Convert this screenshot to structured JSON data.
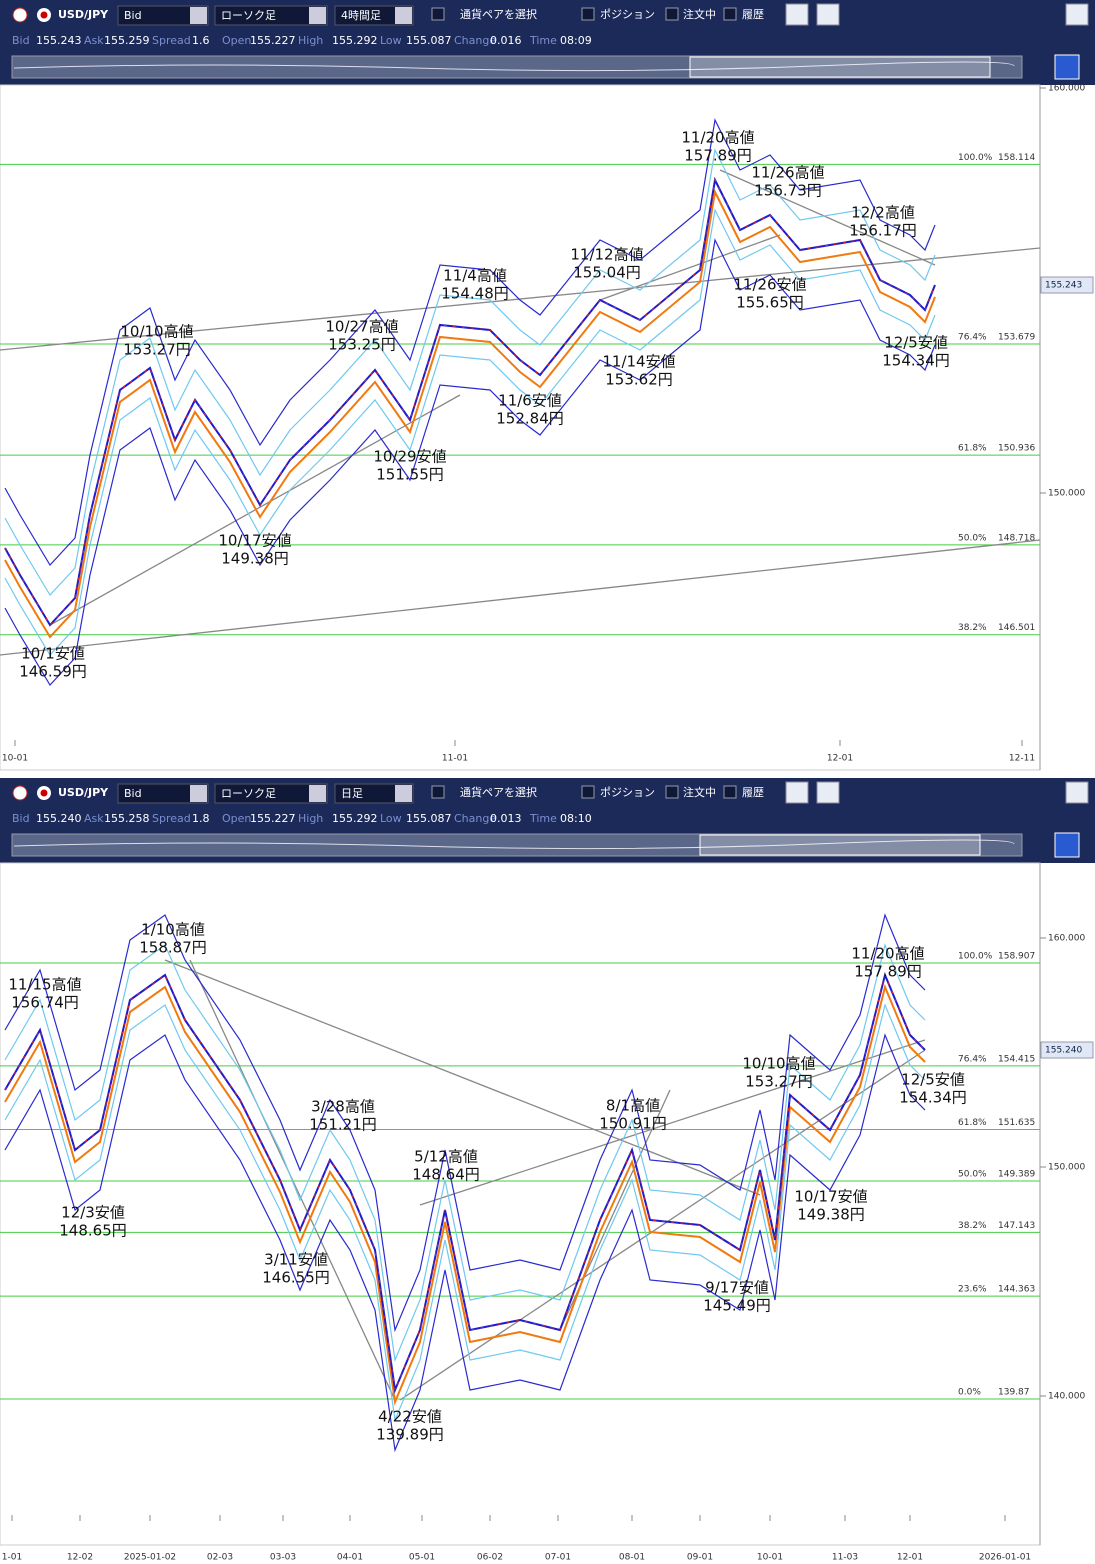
{
  "panels": [
    {
      "toolbar": {
        "pair": "USD/JPY",
        "price_type": "Bid",
        "chart_type": "ローソク足",
        "timeframe": "4時間足",
        "select_pair": "通貨ペアを選択",
        "position": "ポジション",
        "orders": "注文中",
        "history": "履歴"
      },
      "quote": [
        [
          "Bid",
          "155.243"
        ],
        [
          "Ask",
          "155.259"
        ],
        [
          "Spread",
          "1.6"
        ],
        [
          "Open",
          "155.227"
        ],
        [
          "High",
          "155.292"
        ],
        [
          "Low",
          "155.087"
        ],
        [
          "Change",
          "0.016"
        ],
        [
          "Time",
          "08:09"
        ]
      ],
      "current_price": "155.243",
      "yticks": [
        {
          "value": 160,
          "label": "160.000"
        },
        {
          "value": 150,
          "label": "150.000"
        }
      ],
      "xticks": [
        "10-01",
        "11-01",
        "12-01",
        "12-11"
      ],
      "fib": [
        {
          "label": "100.0%",
          "value": 158.114
        },
        {
          "label": "76.4%",
          "value": 153.679
        },
        {
          "label": "61.8%",
          "value": 150.936
        },
        {
          "label": "50.0%",
          "value": 148.718
        },
        {
          "label": "38.2%",
          "value": 146.501
        }
      ],
      "annotations": [
        [
          "10/10高値",
          "153.27円"
        ],
        [
          "10/27高値",
          "153.25円"
        ],
        [
          "11/4高値",
          "154.48円"
        ],
        [
          "11/12高値",
          "155.04円"
        ],
        [
          "11/20高値",
          "157.89円"
        ],
        [
          "11/26高値",
          "156.73円"
        ],
        [
          "12/2高値",
          "156.17円"
        ],
        [
          "11/26安値",
          "155.65円"
        ],
        [
          "11/14安値",
          "153.62円"
        ],
        [
          "12/5安値",
          "154.34円"
        ],
        [
          "11/6安値",
          "152.84円"
        ],
        [
          "10/29安値",
          "151.55円"
        ],
        [
          "10/17安値",
          "149.38円"
        ],
        [
          "10/1安値",
          "146.59円"
        ]
      ]
    },
    {
      "toolbar": {
        "pair": "USD/JPY",
        "price_type": "Bid",
        "chart_type": "ローソク足",
        "timeframe": "日足",
        "select_pair": "通貨ペアを選択",
        "position": "ポジション",
        "orders": "注文中",
        "history": "履歴"
      },
      "quote": [
        [
          "Bid",
          "155.240"
        ],
        [
          "Ask",
          "155.258"
        ],
        [
          "Spread",
          "1.8"
        ],
        [
          "Open",
          "155.227"
        ],
        [
          "High",
          "155.292"
        ],
        [
          "Low",
          "155.087"
        ],
        [
          "Change",
          "0.013"
        ],
        [
          "Time",
          "08:10"
        ]
      ],
      "current_price": "155.240",
      "yticks": [
        {
          "value": 160,
          "label": "160.000"
        },
        {
          "value": 150,
          "label": "150.000"
        },
        {
          "value": 140,
          "label": "140.000"
        }
      ],
      "xticks": [
        "1-01",
        "12-02",
        "2025-01-02",
        "02-03",
        "03-03",
        "04-01",
        "05-01",
        "06-02",
        "07-01",
        "08-01",
        "09-01",
        "10-01",
        "11-03",
        "12-01",
        "2026-01-01"
      ],
      "fib": [
        {
          "label": "100.0%",
          "value": 158.907
        },
        {
          "label": "76.4%",
          "value": 154.415
        },
        {
          "label": "61.8%",
          "value": 151.635
        },
        {
          "label": "50.0%",
          "value": 149.389
        },
        {
          "label": "38.2%",
          "value": 147.143
        },
        {
          "label": "23.6%",
          "value": 144.363
        },
        {
          "label": "0.0%",
          "value": 139.87
        }
      ],
      "annotations": [
        [
          "11/15高値",
          "156.74円"
        ],
        [
          "1/10高値",
          "158.87円"
        ],
        [
          "12/3安値",
          "148.65円"
        ],
        [
          "3/28高値",
          "151.21円"
        ],
        [
          "3/11安値",
          "146.55円"
        ],
        [
          "5/12高値",
          "148.64円"
        ],
        [
          "4/22安値",
          "139.89円"
        ],
        [
          "8/1高値",
          "150.91円"
        ],
        [
          "9/17安値",
          "145.49円"
        ],
        [
          "10/10高値",
          "153.27円"
        ],
        [
          "10/17安値",
          "149.38円"
        ],
        [
          "11/20高値",
          "157.89円"
        ],
        [
          "12/5安値",
          "154.34円"
        ]
      ]
    }
  ]
}
